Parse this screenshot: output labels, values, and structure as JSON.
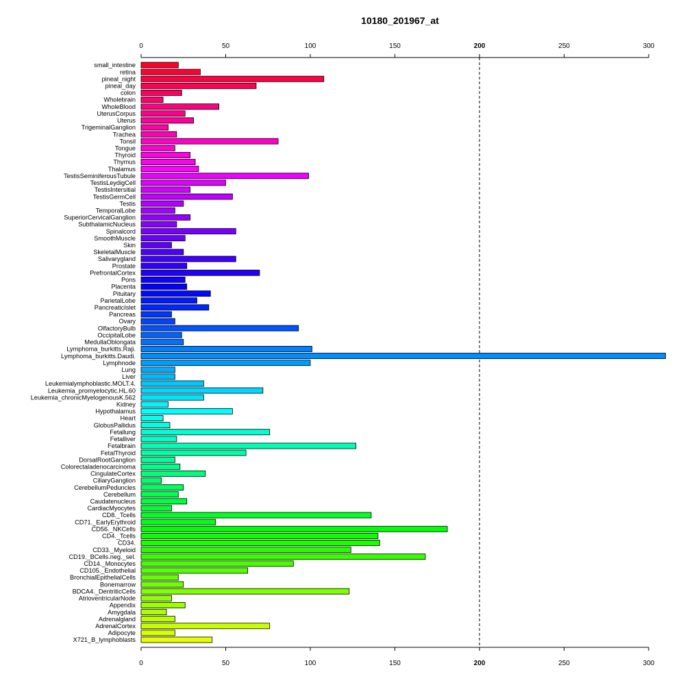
{
  "chart_data": {
    "type": "bar",
    "orientation": "horizontal",
    "title": "10180_201967_at",
    "xlabel": "",
    "ylabel": "",
    "xlim": [
      0,
      310
    ],
    "x_ticks": [
      0,
      50,
      100,
      150,
      200,
      250,
      300
    ],
    "reference_line": 200,
    "grid": false,
    "categories": [
      "small_intestine",
      "retina",
      "pineal_night",
      "pineal_day",
      "colon",
      "Wholebrain",
      "WholeBlood",
      "UterusCorpus",
      "Uterus",
      "TrigeminalGanglion",
      "Trachea",
      "Tonsil",
      "Tongue",
      "Thyroid",
      "Thymus",
      "Thalamus",
      "TestisSeminiferousTubule",
      "TestisLeydigCell",
      "TestisIntersitial",
      "TestisGermCell",
      "Testis",
      "TemporalLobe",
      "SuperiorCervicalGanglion",
      "SubthalamicNucleus",
      "Spinalcord",
      "SmoothMuscle",
      "Skin",
      "SkeletalMuscle",
      "Salivarygland",
      "Prostate",
      "PrefrontalCortex",
      "Pons",
      "Placenta",
      "Pituitary",
      "ParietalLobe",
      "PancreaticIslet",
      "Pancreas",
      "Ovary",
      "OlfactoryBulb",
      "OccipitalLobe",
      "MedullaOblongata",
      "Lymphoma_burkitts.Raji.",
      "Lymphoma_burkitts.Daudi.",
      "Lymphnode",
      "Lung",
      "Liver",
      "Leukemialymphoblastic.MOLT.4.",
      "Leukemia_promyelocytic.HL.60",
      "Leukemia_chronicMyelogenousK.562",
      "Kidney",
      "Hypothalamus",
      "Heart",
      "GlobusPallidus",
      "Fetallung",
      "Fetalliver",
      "Fetalbrain",
      "FetalThyroid",
      "DorsalRootGanglion",
      "Colorectaladenocarcinoma",
      "CingulateCortex",
      "CiliaryGanglion",
      "CerebellumPeduncles",
      "Cerebellum",
      "Caudatenucleus",
      "CardiacMyocytes",
      "CD8._Tcells",
      "CD71._EarlyErythroid",
      "CD56._NKCells",
      "CD4._Tcells",
      "CD34.",
      "CD33._Myeloid",
      "CD19._BCells.neg._sel.",
      "CD14._Monocytes",
      "CD105._Endothelial",
      "BronchialEpithelialCells",
      "Bonemarrow",
      "BDCA4._DentriticCells",
      "AtrioventricularNode",
      "Appendix",
      "Amygdala",
      "Adrenalgland",
      "AdrenalCortex",
      "Adipocyte",
      "X721_B_lymphoblasts"
    ],
    "values": [
      22,
      35,
      108,
      68,
      24,
      13,
      46,
      26,
      31,
      16,
      21,
      81,
      20,
      29,
      32,
      34,
      99,
      50,
      29,
      54,
      25,
      20,
      29,
      21,
      56,
      26,
      18,
      25,
      56,
      27,
      70,
      26,
      27,
      41,
      33,
      40,
      18,
      20,
      93,
      24,
      25,
      101,
      310,
      100,
      20,
      20,
      37,
      72,
      37,
      16,
      54,
      13,
      17,
      76,
      21,
      127,
      62,
      20,
      23,
      38,
      12,
      25,
      22,
      27,
      18,
      136,
      44,
      181,
      140,
      141,
      124,
      168,
      90,
      63,
      22,
      25,
      123,
      18,
      26,
      15,
      20,
      76,
      20,
      42
    ],
    "colors": [
      "#FF0026",
      "#FF0035",
      "#FF0043",
      "#FF0052",
      "#FF0060",
      "#FF006F",
      "#FF007E",
      "#FF008C",
      "#FF009B",
      "#FF00A9",
      "#FF00B8",
      "#FF00C7",
      "#FF00D5",
      "#FF00E4",
      "#FF00F2",
      "#FD00FF",
      "#EE00FF",
      "#DF00FF",
      "#D100FF",
      "#C200FF",
      "#B400FF",
      "#A500FF",
      "#9600FF",
      "#8800FF",
      "#7900FF",
      "#6B00FF",
      "#5C00FF",
      "#4D00FF",
      "#3F00FF",
      "#3000FF",
      "#2200FF",
      "#1300FF",
      "#0400FF",
      "#000AFF",
      "#0019FF",
      "#0027FF",
      "#0036FF",
      "#0044FF",
      "#0053FF",
      "#0062FF",
      "#0070FF",
      "#007FFF",
      "#008DFF",
      "#009CFF",
      "#00ABFF",
      "#00B9FF",
      "#00C8FF",
      "#00D6FF",
      "#00E5FF",
      "#00F4FF",
      "#00FFFD",
      "#00FFEE",
      "#00FFDF",
      "#00FFD1",
      "#00FFC2",
      "#00FFB4",
      "#00FFA5",
      "#00FF96",
      "#00FF88",
      "#00FF79",
      "#00FF6B",
      "#00FF5C",
      "#00FF4D",
      "#00FF3F",
      "#00FF30",
      "#00FF22",
      "#00FF13",
      "#00FF04",
      "#0AFF00",
      "#19FF00",
      "#27FF00",
      "#36FF00",
      "#44FF00",
      "#53FF00",
      "#62FF00",
      "#70FF00",
      "#7FFF00",
      "#8DFF00",
      "#9CFF00",
      "#ABFF00",
      "#B9FF00",
      "#C8FF00",
      "#D6FF00",
      "#E5FF00"
    ]
  }
}
